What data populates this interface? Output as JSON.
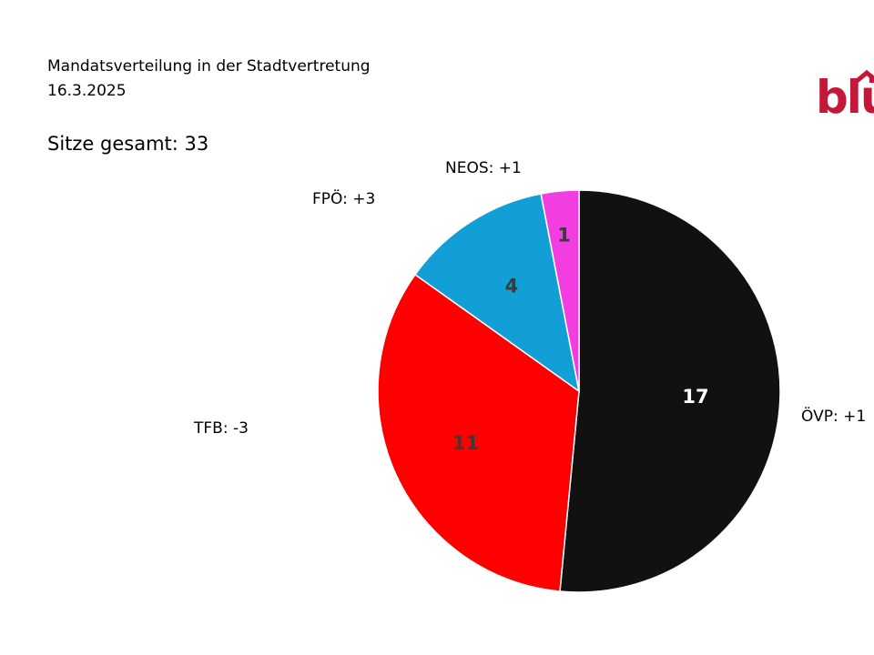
{
  "header": {
    "title_line1": "Mandatsverteilung in der Stadtvertretung",
    "title_line2": "16.3.2025",
    "total_seats": "Sitze gesamt: 33"
  },
  "logo": {
    "text": "blü",
    "color": "#c41838"
  },
  "chart_data": {
    "type": "pie",
    "title": "Mandatsverteilung in der Stadtvertretung",
    "total": 33,
    "categories": [
      "ÖVP",
      "TFB",
      "FPÖ",
      "NEOS"
    ],
    "values": [
      17,
      11,
      4,
      1
    ],
    "colors": [
      "#111111",
      "#ff0000",
      "#129fd6",
      "#f23de0"
    ],
    "value_label_colors": [
      "#ffffff",
      "#3a3a3a",
      "#3a3a3a",
      "#3a3a3a"
    ],
    "outer_labels": [
      "ÖVP: +1",
      "TFB: -3",
      "FPÖ: +3",
      "NEOS: +1"
    ],
    "start_angle": "top, clockwise"
  }
}
